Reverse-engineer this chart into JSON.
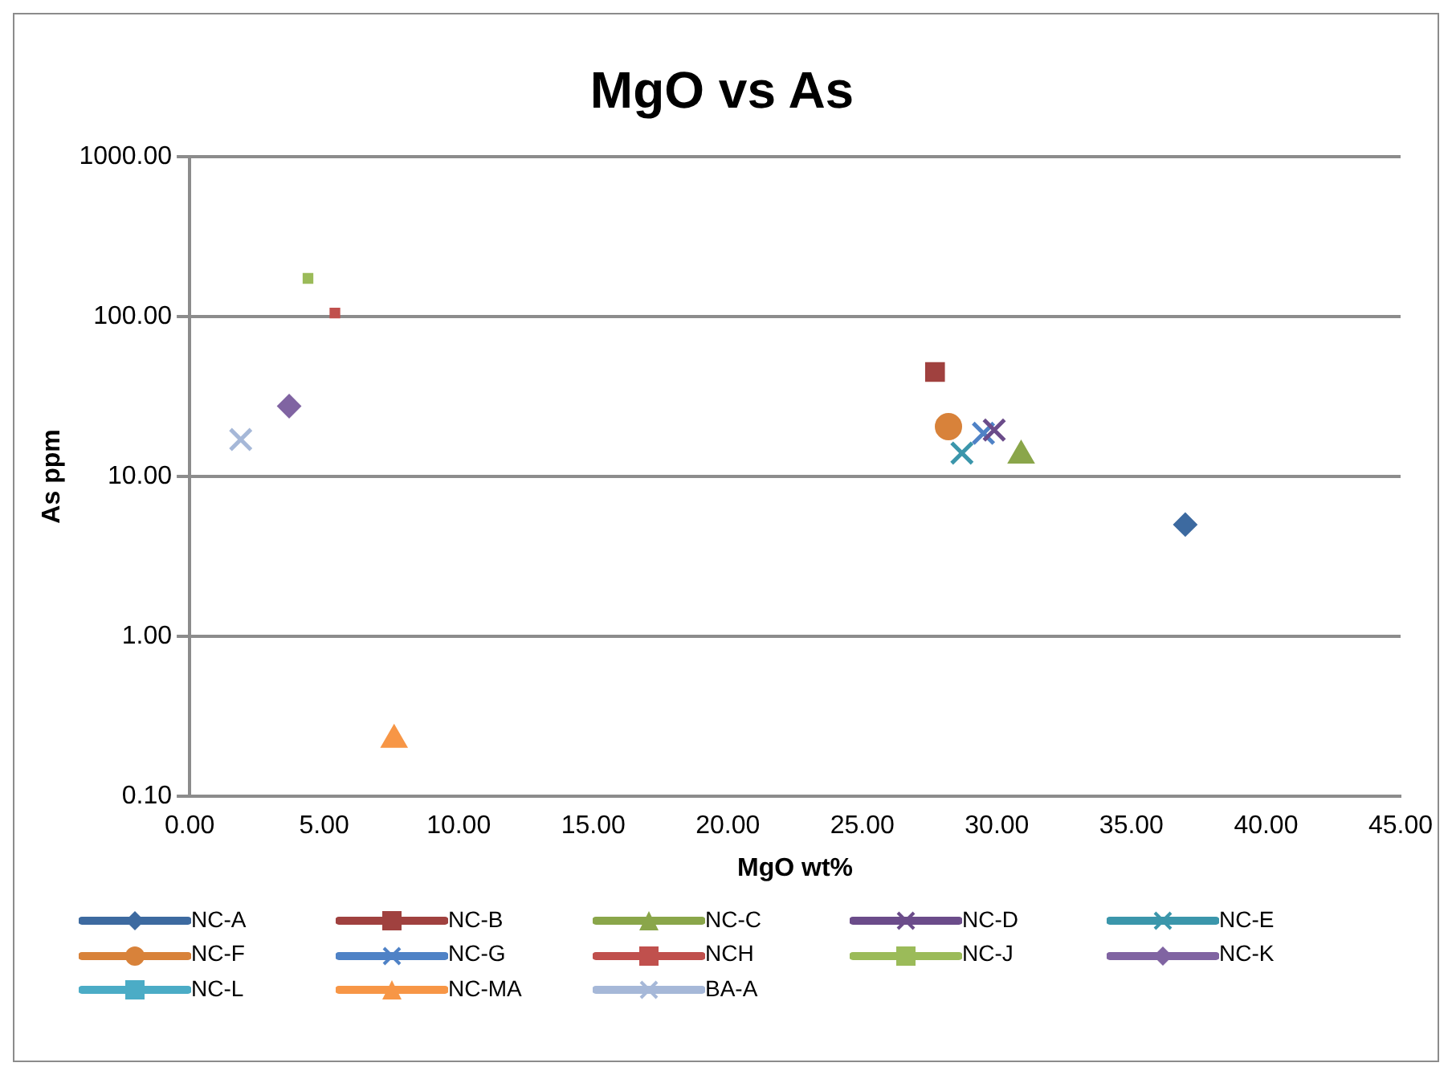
{
  "chart_data": {
    "type": "scatter",
    "title": "MgO vs As",
    "xlabel": "MgO wt%",
    "ylabel": "As ppm",
    "log": "y",
    "grid": "y",
    "legend": "bottom",
    "xlim": [
      0,
      45
    ],
    "xticks": [
      {
        "value": 0,
        "label": "0.00"
      },
      {
        "value": 5,
        "label": "5.00"
      },
      {
        "value": 10,
        "label": "10.00"
      },
      {
        "value": 15,
        "label": "15.00"
      },
      {
        "value": 20,
        "label": "20.00"
      },
      {
        "value": 25,
        "label": "25.00"
      },
      {
        "value": 30,
        "label": "30.00"
      },
      {
        "value": 35,
        "label": "35.00"
      },
      {
        "value": 40,
        "label": "40.00"
      },
      {
        "value": 45,
        "label": "45.00"
      }
    ],
    "ylim": [
      0.1,
      1000
    ],
    "yticks": [
      {
        "value": 0.1,
        "label": "0.10"
      },
      {
        "value": 1,
        "label": "1.00"
      },
      {
        "value": 10,
        "label": "10.00"
      },
      {
        "value": 100,
        "label": "100.00"
      },
      {
        "value": 1000,
        "label": "1000.00"
      }
    ],
    "series": [
      {
        "name": "NC-A",
        "color": "#3d6aa0",
        "marker": "diamond",
        "x": [
          37.0
        ],
        "values": [
          5.0
        ]
      },
      {
        "name": "NC-B",
        "color": "#a0413f",
        "marker": "square",
        "x": [
          27.7
        ],
        "values": [
          45
        ]
      },
      {
        "name": "NC-C",
        "color": "#8aa64a",
        "marker": "triangle",
        "x": [
          30.9
        ],
        "values": [
          13.5
        ]
      },
      {
        "name": "NC-D",
        "color": "#6b4c8a",
        "marker": "cross",
        "x": [
          29.9
        ],
        "values": [
          19.5
        ]
      },
      {
        "name": "NC-E",
        "color": "#3b96ab",
        "marker": "cross",
        "x": [
          28.7
        ],
        "values": [
          14
        ]
      },
      {
        "name": "NC-F",
        "color": "#d8823a",
        "marker": "circle",
        "x": [
          28.2
        ],
        "values": [
          20.5
        ]
      },
      {
        "name": "NC-G",
        "color": "#4f82c6",
        "marker": "cross",
        "x": [
          29.5
        ],
        "values": [
          18.6
        ]
      },
      {
        "name": "NCH",
        "color": "#c0504d",
        "x": [
          5.4
        ],
        "values": [
          105
        ]
      },
      {
        "name": "NC-J",
        "color": "#9bbb59",
        "x": [
          4.4
        ],
        "values": [
          173
        ]
      },
      {
        "name": "NC-K",
        "color": "#8064a2",
        "marker": "diamond",
        "x": [
          3.7
        ],
        "values": [
          27.5
        ]
      },
      {
        "name": "NC-L",
        "color": "#4bacc6",
        "marker": "square"
      },
      {
        "name": "NC-MA",
        "color": "#f79646",
        "marker": "triangle",
        "x": [
          7.6
        ],
        "values": [
          0.226
        ]
      },
      {
        "name": "BA-A",
        "color": "#a6b8d8",
        "marker": "cross",
        "x": [
          1.9
        ],
        "values": [
          17
        ]
      }
    ]
  }
}
